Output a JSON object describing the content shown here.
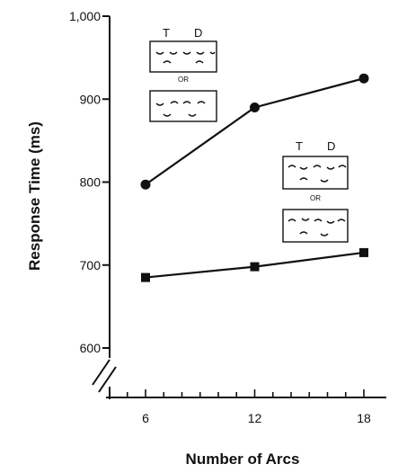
{
  "chart_data": {
    "type": "line",
    "title": "",
    "xlabel": "Number of Arcs",
    "ylabel": "Response Time (ms)",
    "x": [
      6,
      12,
      18
    ],
    "x_ticks": [
      "6",
      "12",
      "18"
    ],
    "y_ticks": [
      "600",
      "700",
      "800",
      "900",
      "1,000"
    ],
    "ylim": [
      600,
      1000
    ],
    "xlim": [
      6,
      18
    ],
    "axis_break": true,
    "grid": false,
    "series": [
      {
        "marker": "circle",
        "values": [
          797,
          890,
          925
        ]
      },
      {
        "marker": "square",
        "values": [
          685,
          698,
          715
        ]
      }
    ],
    "insets": [
      {
        "label_target": "T",
        "label_distractor": "D",
        "separator": "OR",
        "attached_to_series": 0
      },
      {
        "label_target": "T",
        "label_distractor": "D",
        "separator": "OR",
        "attached_to_series": 1
      }
    ]
  },
  "colors": {
    "ink": "#111111",
    "background": "#ffffff"
  }
}
